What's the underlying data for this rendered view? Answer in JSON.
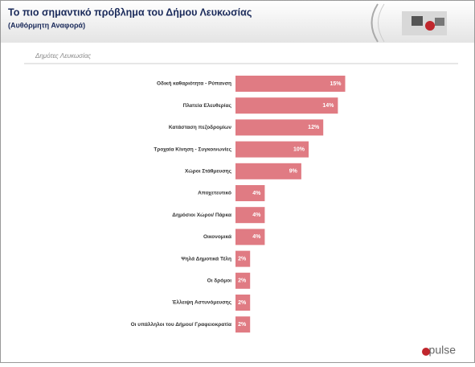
{
  "chart_data": {
    "type": "hbar",
    "title": "Το πιο σημαντικό πρόβλημα του Δήμου Λευκωσίας",
    "subtitle": "(Αυθόρμητη Αναφορά)",
    "group_label": "Δημότες Λευκωσίας",
    "categories": [
      "Οδική καθαριότητα - Ρύπανση",
      "Πλατεία Ελευθερίας",
      "Κατάσταση πεζοδρομίων",
      "Τροχαία Κίνηση - Συγκοινωνίες",
      "Χώροι Στάθμευσης",
      "Αποχετευτικό",
      "Δημόσιοι Χώροι/ Πάρκα",
      "Οικονομικά",
      "Ψηλά Δημοτικά Τέλη",
      "Οι δρόμοι",
      "Έλλειψη Αστυνόμευσης",
      "Οι υπάλληλοι του Δήμου/ Γραφειοκρατία"
    ],
    "values": [
      15,
      14,
      12,
      10,
      9,
      4,
      4,
      4,
      2,
      2,
      2,
      2
    ],
    "value_labels": [
      "15%",
      "14%",
      "12%",
      "10%",
      "9%",
      "4%",
      "4%",
      "4%",
      "2%",
      "2%",
      "2%",
      "2%"
    ],
    "color": "#e07b83",
    "logo": "pulse"
  }
}
